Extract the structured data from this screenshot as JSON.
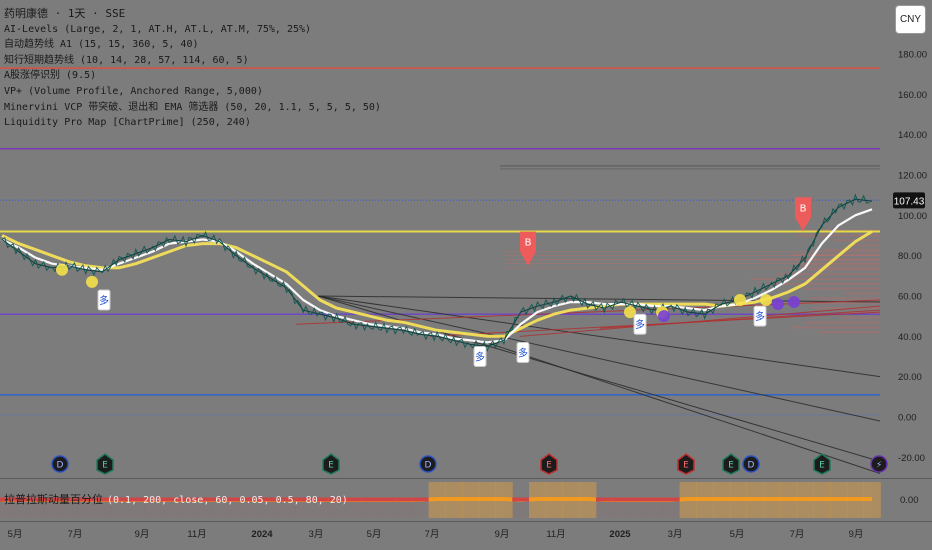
{
  "header": {
    "symbol_line": "药明康德 · 1天 · SSE",
    "indicators": [
      "AI-Levels (Large, 2, 1, AT.H, AT.L, AT.M, 75%, 25%)",
      "自动趋势线 A1 (15, 15, 360, 5, 40)",
      "知行短期趋势线 (10, 14, 28, 57, 114, 60, 5)",
      "A股涨停识别 (9.5)",
      "VP+ (Volume Profile, Anchored Range, 5,000)",
      "Minervini VCP 带突破、退出和 EMA 筛选器 (50, 20, 1.1, 5, 5, 5, 50)",
      "Liquidity Pro Map [ChartPrime] (250, 240)"
    ],
    "currency_button": "CNY"
  },
  "oscillator": {
    "name": "拉普拉斯动量百分位",
    "params": "(0.1, 200, close, 60, 0.05, 0.5, 80, 20)",
    "axis_label": "0.00"
  },
  "event_markers": [
    {
      "letter": "D",
      "kind": "dividend"
    },
    {
      "letter": "E",
      "kind": "earnings"
    },
    {
      "letter": "E",
      "kind": "earnings"
    },
    {
      "letter": "D",
      "kind": "dividend"
    },
    {
      "letter": "E",
      "kind": "earnings"
    },
    {
      "letter": "E",
      "kind": "earnings"
    },
    {
      "letter": "E",
      "kind": "earnings"
    },
    {
      "letter": "D",
      "kind": "dividend"
    },
    {
      "letter": "E",
      "kind": "earnings"
    },
    {
      "letter": "⚡",
      "kind": "split"
    }
  ],
  "signal_labels": [
    "多",
    "多",
    "多",
    "多",
    "多",
    "B",
    "B"
  ],
  "chart_data": {
    "type": "line",
    "title": "药明康德 · 1天 · SSE",
    "x_axis_labels": [
      "5月",
      "7月",
      "9月",
      "11月",
      "2024",
      "3月",
      "5月",
      "7月",
      "9月",
      "11月",
      "2025",
      "3月",
      "5月",
      "7月",
      "9月"
    ],
    "y_axis": {
      "min": -25,
      "max": 190,
      "ticks": [
        "180.00",
        "160.00",
        "140.00",
        "120.00",
        "100.00",
        "80.00",
        "60.00",
        "40.00",
        "20.00",
        "0.00",
        "-20.00"
      ],
      "scale": "linear"
    },
    "last_price_label": "107.43",
    "last_price": 107.43,
    "horizontal_levels": [
      {
        "value": 173,
        "color": "#e84c3d"
      },
      {
        "value": 133,
        "color": "#7a2bc4"
      },
      {
        "value": 107.5,
        "color": "#3a5fd6",
        "style": "dotted"
      },
      {
        "value": 92,
        "color": "#f0e442"
      },
      {
        "value": 51,
        "color": "#6a3fd0"
      },
      {
        "value": 11,
        "color": "#1f5fe0"
      }
    ],
    "series": [
      {
        "name": "",
        "role": "price",
        "color": "#0a3d3a",
        "values": [
          88,
          82,
          76,
          74,
          75,
          73,
          72,
          78,
          81,
          84,
          88,
          87,
          90,
          87,
          80,
          74,
          69,
          64,
          53,
          51,
          49,
          46,
          45,
          44,
          43,
          41,
          40,
          38,
          36,
          35,
          38,
          52,
          55,
          57,
          60,
          56,
          54,
          57,
          55,
          53,
          55,
          52,
          51,
          56,
          58,
          62,
          66,
          70,
          79,
          95,
          104,
          108,
          107
        ]
      },
      {
        "name": "",
        "role": "short-ma",
        "color": "#ffffff",
        "values": [
          88,
          84,
          79,
          76,
          75,
          74,
          73,
          76,
          79,
          82,
          86,
          87,
          88,
          87,
          82,
          76,
          71,
          66,
          58,
          53,
          50,
          48,
          46,
          45,
          44,
          42,
          41,
          39,
          38,
          37,
          38,
          46,
          52,
          55,
          57,
          57,
          56,
          56,
          56,
          55,
          55,
          54,
          53,
          55,
          56,
          59,
          63,
          68,
          74,
          86,
          95,
          100,
          103
        ]
      },
      {
        "name": "",
        "role": "long-ma",
        "color": "#f4e05a",
        "values": [
          90,
          86,
          83,
          80,
          77,
          75,
          74,
          74,
          76,
          79,
          82,
          85,
          86,
          86,
          84,
          80,
          76,
          72,
          65,
          58,
          54,
          52,
          50,
          48,
          47,
          45,
          43,
          42,
          41,
          40,
          40,
          44,
          48,
          51,
          53,
          54,
          55,
          56,
          56,
          56,
          56,
          56,
          56,
          55,
          56,
          57,
          59,
          62,
          66,
          73,
          80,
          87,
          92
        ]
      }
    ],
    "oscillator_series": {
      "range": [
        0,
        100
      ],
      "values": [
        20,
        22,
        18,
        20,
        24,
        21,
        19,
        20,
        23,
        21,
        18,
        20,
        22,
        19,
        21,
        20,
        18,
        22,
        21,
        23,
        20,
        19,
        24,
        20,
        21,
        30,
        85,
        86,
        84,
        80,
        83,
        25,
        82,
        84,
        86,
        85,
        30,
        28,
        26,
        24,
        22,
        85,
        88,
        86,
        87,
        89,
        88,
        90,
        86,
        84,
        88,
        85,
        86
      ]
    }
  }
}
